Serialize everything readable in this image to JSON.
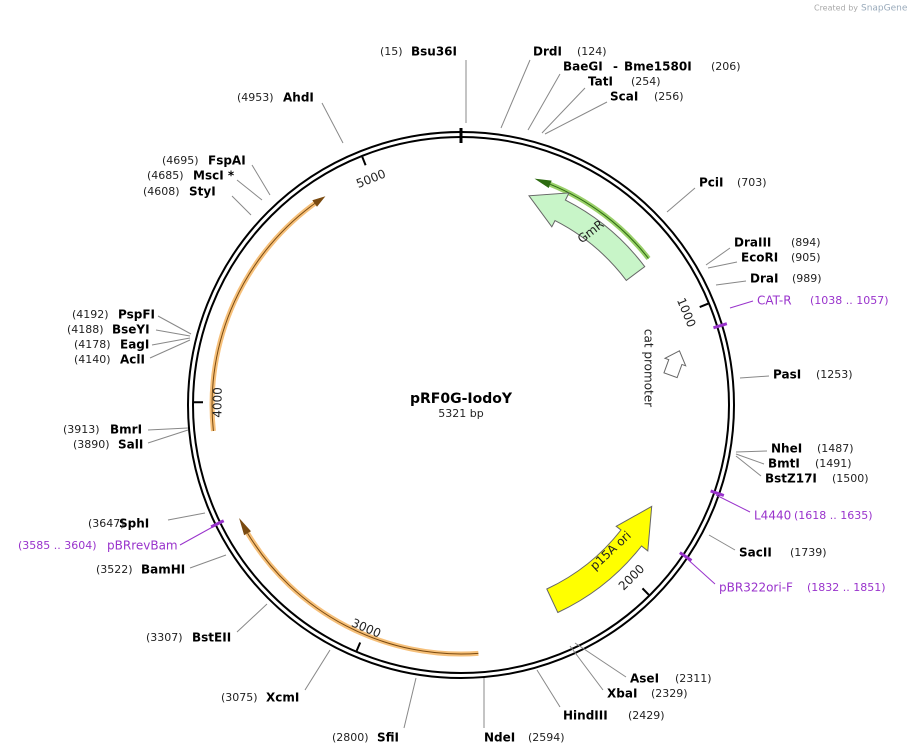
{
  "header": {
    "created_by": "Created by",
    "brand": "SnapGene"
  },
  "map": {
    "name": "pRF0G-IodoY",
    "length": "5321 bp"
  },
  "enzymes": [
    {
      "name": "Bsu36I",
      "position": "(15)"
    },
    {
      "name": "DrdI",
      "position": "(124)"
    },
    {
      "name": "BaeGI",
      "separator": "-",
      "name2": "Bme1580I",
      "position": "(206)"
    },
    {
      "name": "TatI",
      "position": "(254)"
    },
    {
      "name": "ScaI",
      "position": "(256)"
    },
    {
      "name": "PciI",
      "position": "(703)"
    },
    {
      "name": "DraIII",
      "position": "(894)"
    },
    {
      "name": "EcoRI",
      "position": "(905)"
    },
    {
      "name": "DraI",
      "position": "(989)"
    },
    {
      "name": "PasI",
      "position": "(1253)"
    },
    {
      "name": "NheI",
      "position": "(1487)"
    },
    {
      "name": "BmtI",
      "position": "(1491)"
    },
    {
      "name": "BstZ17I",
      "position": "(1500)"
    },
    {
      "name": "SacII",
      "position": "(1739)"
    },
    {
      "name": "AseI",
      "position": "(2311)"
    },
    {
      "name": "XbaI",
      "position": "(2329)"
    },
    {
      "name": "HindIII",
      "position": "(2429)"
    },
    {
      "name": "NdeI",
      "position": "(2594)"
    },
    {
      "name": "SfiI",
      "position": "(2800)"
    },
    {
      "name": "XcmI",
      "position": "(3075)"
    },
    {
      "name": "BstEII",
      "position": "(3307)"
    },
    {
      "name": "BamHI",
      "position": "(3522)"
    },
    {
      "name": "SphI",
      "position": "(3647)"
    },
    {
      "name": "SalI",
      "position": "(3890)"
    },
    {
      "name": "BmrI",
      "position": "(3913)"
    },
    {
      "name": "AclI",
      "position": "(4140)"
    },
    {
      "name": "EagI",
      "position": "(4178)"
    },
    {
      "name": "BseYI",
      "position": "(4188)"
    },
    {
      "name": "PspFI",
      "position": "(4192)"
    },
    {
      "name": "StyI",
      "position": "(4608)"
    },
    {
      "name": "MscI *",
      "position": "(4685)"
    },
    {
      "name": "FspAI",
      "position": "(4695)"
    },
    {
      "name": "AhdI",
      "position": "(4953)"
    }
  ],
  "primers": [
    {
      "name": "CAT-R",
      "range": "(1038 .. 1057)"
    },
    {
      "name": "L4440",
      "range": "(1618 .. 1635)"
    },
    {
      "name": "pBR322ori-F",
      "range": "(1832 .. 1851)"
    },
    {
      "name": "pBRrevBam",
      "range": "(3585 .. 3604)"
    }
  ],
  "features": [
    {
      "label": "GmR"
    },
    {
      "label": "cat promoter"
    },
    {
      "label": "p15A ori"
    }
  ],
  "ticks": [
    "1000",
    "2000",
    "3000",
    "4000",
    "5000"
  ]
}
